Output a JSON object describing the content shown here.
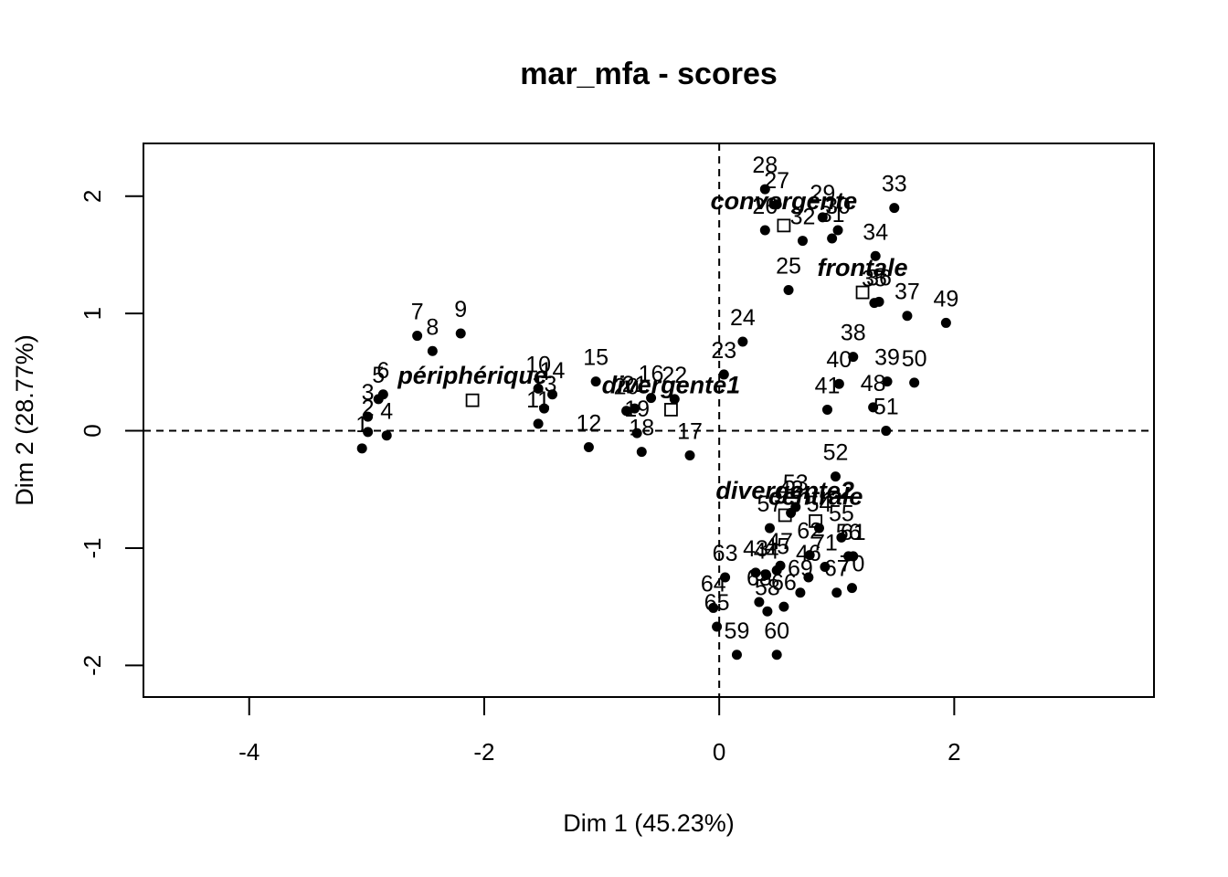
{
  "chart_data": {
    "type": "scatter",
    "title": "mar_mfa - scores",
    "xlabel": "Dim 1 (45.23%)",
    "ylabel": "Dim 2 (28.77%)",
    "xlim": [
      -4.9,
      3.7
    ],
    "ylim": [
      -2.27,
      2.45
    ],
    "xticks": [
      -4,
      -2,
      0,
      2
    ],
    "yticks": [
      -2,
      -1,
      0,
      1,
      2
    ],
    "grid": false,
    "reference_lines": {
      "x": 0,
      "y": 0
    },
    "points": [
      {
        "label": "1",
        "x": -3.04,
        "y": -0.15
      },
      {
        "label": "2",
        "x": -2.99,
        "y": -0.01
      },
      {
        "label": "3",
        "x": -2.99,
        "y": 0.12
      },
      {
        "label": "4",
        "x": -2.83,
        "y": -0.04
      },
      {
        "label": "5",
        "x": -2.9,
        "y": 0.27
      },
      {
        "label": "6",
        "x": -2.86,
        "y": 0.31
      },
      {
        "label": "7",
        "x": -2.57,
        "y": 0.81
      },
      {
        "label": "8",
        "x": -2.44,
        "y": 0.68
      },
      {
        "label": "9",
        "x": -2.2,
        "y": 0.83
      },
      {
        "label": "10",
        "x": -1.54,
        "y": 0.36
      },
      {
        "label": "11",
        "x": -1.54,
        "y": 0.06
      },
      {
        "label": "12",
        "x": -1.11,
        "y": -0.14
      },
      {
        "label": "13",
        "x": -1.49,
        "y": 0.19
      },
      {
        "label": "14",
        "x": -1.42,
        "y": 0.31
      },
      {
        "label": "15",
        "x": -1.05,
        "y": 0.42
      },
      {
        "label": "16",
        "x": -0.58,
        "y": 0.28
      },
      {
        "label": "17",
        "x": -0.25,
        "y": -0.21
      },
      {
        "label": "18",
        "x": -0.66,
        "y": -0.18
      },
      {
        "label": "19",
        "x": -0.7,
        "y": -0.02
      },
      {
        "label": "20",
        "x": -0.79,
        "y": 0.17
      },
      {
        "label": "21",
        "x": -0.72,
        "y": 0.19
      },
      {
        "label": "22",
        "x": -0.38,
        "y": 0.27
      },
      {
        "label": "23",
        "x": 0.04,
        "y": 0.48
      },
      {
        "label": "24",
        "x": 0.2,
        "y": 0.76
      },
      {
        "label": "25",
        "x": 0.59,
        "y": 1.2
      },
      {
        "label": "26",
        "x": 0.39,
        "y": 1.71
      },
      {
        "label": "27",
        "x": 0.49,
        "y": 1.93
      },
      {
        "label": "28",
        "x": 0.39,
        "y": 2.06
      },
      {
        "label": "29",
        "x": 0.88,
        "y": 1.82
      },
      {
        "label": "30",
        "x": 1.01,
        "y": 1.71
      },
      {
        "label": "31",
        "x": 0.96,
        "y": 1.64
      },
      {
        "label": "32",
        "x": 0.71,
        "y": 1.62
      },
      {
        "label": "33",
        "x": 1.49,
        "y": 1.9
      },
      {
        "label": "34",
        "x": 1.33,
        "y": 1.49
      },
      {
        "label": "35",
        "x": 1.32,
        "y": 1.09
      },
      {
        "label": "36",
        "x": 1.36,
        "y": 1.1
      },
      {
        "label": "37",
        "x": 1.6,
        "y": 0.98
      },
      {
        "label": "38",
        "x": 1.14,
        "y": 0.63
      },
      {
        "label": "39",
        "x": 1.43,
        "y": 0.42
      },
      {
        "label": "40",
        "x": 1.02,
        "y": 0.4
      },
      {
        "label": "41",
        "x": 0.92,
        "y": 0.18
      },
      {
        "label": "42",
        "x": 0.61,
        "y": -0.7
      },
      {
        "label": "43",
        "x": 0.31,
        "y": -1.21
      },
      {
        "label": "44",
        "x": 0.4,
        "y": -1.23
      },
      {
        "label": "45",
        "x": 0.49,
        "y": -1.19
      },
      {
        "label": "46",
        "x": 0.76,
        "y": -1.25
      },
      {
        "label": "47",
        "x": 0.52,
        "y": -1.15
      },
      {
        "label": "48",
        "x": 1.31,
        "y": 0.2
      },
      {
        "label": "49",
        "x": 1.93,
        "y": 0.92
      },
      {
        "label": "50",
        "x": 1.66,
        "y": 0.41
      },
      {
        "label": "51",
        "x": 1.42,
        "y": 0.0
      },
      {
        "label": "52",
        "x": 0.99,
        "y": -0.39
      },
      {
        "label": "53",
        "x": 0.65,
        "y": -0.65
      },
      {
        "label": "54",
        "x": 0.85,
        "y": -0.83
      },
      {
        "label": "55",
        "x": 1.04,
        "y": -0.91
      },
      {
        "label": "56",
        "x": 1.1,
        "y": -1.07
      },
      {
        "label": "57",
        "x": 0.43,
        "y": -0.83
      },
      {
        "label": "58",
        "x": 0.41,
        "y": -1.54
      },
      {
        "label": "59",
        "x": 0.15,
        "y": -1.91
      },
      {
        "label": "60",
        "x": 0.49,
        "y": -1.91
      },
      {
        "label": "61",
        "x": 1.14,
        "y": -1.07
      },
      {
        "label": "62",
        "x": 0.77,
        "y": -1.06
      },
      {
        "label": "63",
        "x": 0.05,
        "y": -1.25
      },
      {
        "label": "64",
        "x": -0.05,
        "y": -1.51
      },
      {
        "label": "65",
        "x": -0.02,
        "y": -1.67
      },
      {
        "label": "66",
        "x": 0.55,
        "y": -1.5
      },
      {
        "label": "67",
        "x": 1.0,
        "y": -1.38
      },
      {
        "label": "68",
        "x": 0.34,
        "y": -1.46
      },
      {
        "label": "69",
        "x": 0.69,
        "y": -1.38
      },
      {
        "label": "70",
        "x": 1.13,
        "y": -1.34
      },
      {
        "label": "71",
        "x": 0.9,
        "y": -1.16
      }
    ],
    "categories": [
      {
        "label": "convergente",
        "x": 0.55,
        "y": 1.75
      },
      {
        "label": "frontale",
        "x": 1.22,
        "y": 1.18
      },
      {
        "label": "périphérique",
        "x": -2.1,
        "y": 0.26
      },
      {
        "label": "divergente1",
        "x": -0.41,
        "y": 0.18
      },
      {
        "label": "divergente2",
        "x": 0.56,
        "y": -0.72
      },
      {
        "label": "centrale",
        "x": 0.82,
        "y": -0.77
      }
    ]
  }
}
